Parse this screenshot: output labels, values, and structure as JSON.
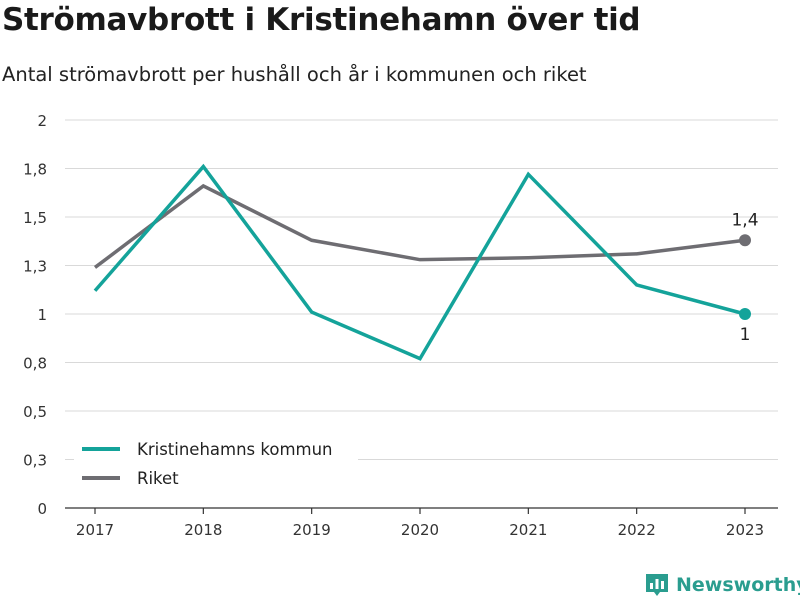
{
  "title": "Strömavbrott i Kristinehamn över tid",
  "subtitle": "Antal strömavbrott per hushåll och år i kommunen och riket",
  "brand": "Newsworthy",
  "chart_data": {
    "type": "line",
    "x": [
      "2017",
      "2018",
      "2019",
      "2020",
      "2021",
      "2022",
      "2023"
    ],
    "ylim": [
      0,
      2
    ],
    "y_ticks": [
      0,
      0.25,
      0.5,
      0.75,
      1,
      1.25,
      1.5,
      1.75,
      2
    ],
    "y_tick_labels": [
      "0",
      "0,3",
      "0,5",
      "0,8",
      "1",
      "1,3",
      "1,5",
      "1,8",
      "2"
    ],
    "grid": true,
    "legend_position": "bottom-left",
    "series": [
      {
        "name": "Kristinehamns kommun",
        "color": "#14a39a",
        "values": [
          1.12,
          1.76,
          1.01,
          0.77,
          1.72,
          1.15,
          1.0
        ],
        "end_label": "1"
      },
      {
        "name": "Riket",
        "color": "#6e6d72",
        "values": [
          1.24,
          1.66,
          1.38,
          1.28,
          1.29,
          1.31,
          1.38
        ],
        "end_label": "1,4"
      }
    ]
  }
}
